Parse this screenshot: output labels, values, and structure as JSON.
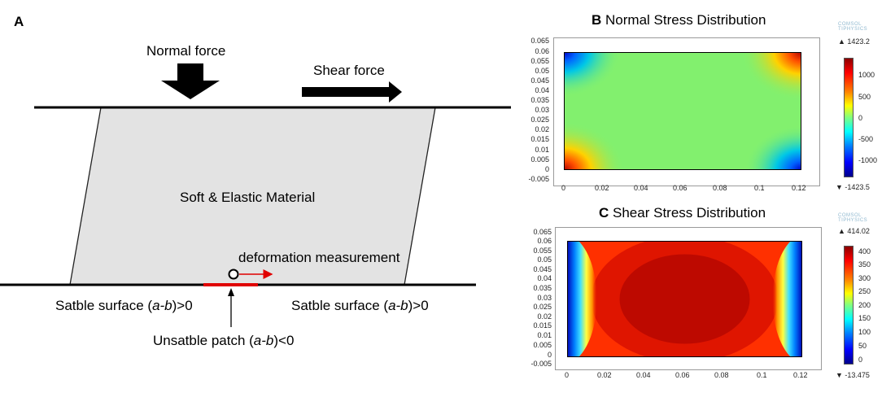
{
  "panel_a": {
    "letter": "A",
    "normal_force": "Normal force",
    "shear_force": "Shear force",
    "material": "Soft & Elastic Material",
    "deformation": "deformation measurement",
    "stable_left": [
      "Satble surface (",
      "a-b",
      ")>0"
    ],
    "stable_right": [
      "Satble surface (",
      "a-b",
      ")>0"
    ],
    "unstable": [
      "Unsatble patch (",
      "a-b",
      ")<0"
    ]
  },
  "panel_b": {
    "letter": "B",
    "title": "Normal Stress Distribution",
    "watermark": [
      "COMSOL",
      "TIPHYSICS"
    ],
    "max_label": "▲ 1423.2",
    "min_label": "▼ -1423.5",
    "colorbar_ticks": [
      "1000",
      "500",
      "0",
      "-500",
      "-1000"
    ],
    "y_ticks": [
      "0.065",
      "0.06",
      "0.055",
      "0.05",
      "0.045",
      "0.04",
      "0.035",
      "0.03",
      "0.025",
      "0.02",
      "0.015",
      "0.01",
      "0.005",
      "0",
      "-0.005"
    ],
    "x_ticks": [
      "0",
      "0.02",
      "0.04",
      "0.06",
      "0.08",
      "0.1",
      "0.12"
    ]
  },
  "panel_c": {
    "letter": "C",
    "title": "Shear Stress Distribution",
    "watermark": [
      "COMSOL",
      "TIPHYSICS"
    ],
    "max_label": "▲ 414.02",
    "min_label": "▼ -13.475",
    "colorbar_ticks": [
      "400",
      "350",
      "300",
      "250",
      "200",
      "150",
      "100",
      "50",
      "0"
    ],
    "y_ticks": [
      "0.065",
      "0.06",
      "0.055",
      "0.05",
      "0.045",
      "0.04",
      "0.035",
      "0.03",
      "0.025",
      "0.02",
      "0.015",
      "0.01",
      "0.005",
      "0",
      "-0.005"
    ],
    "x_ticks": [
      "0",
      "0.02",
      "0.04",
      "0.06",
      "0.08",
      "0.1",
      "0.12"
    ]
  }
}
